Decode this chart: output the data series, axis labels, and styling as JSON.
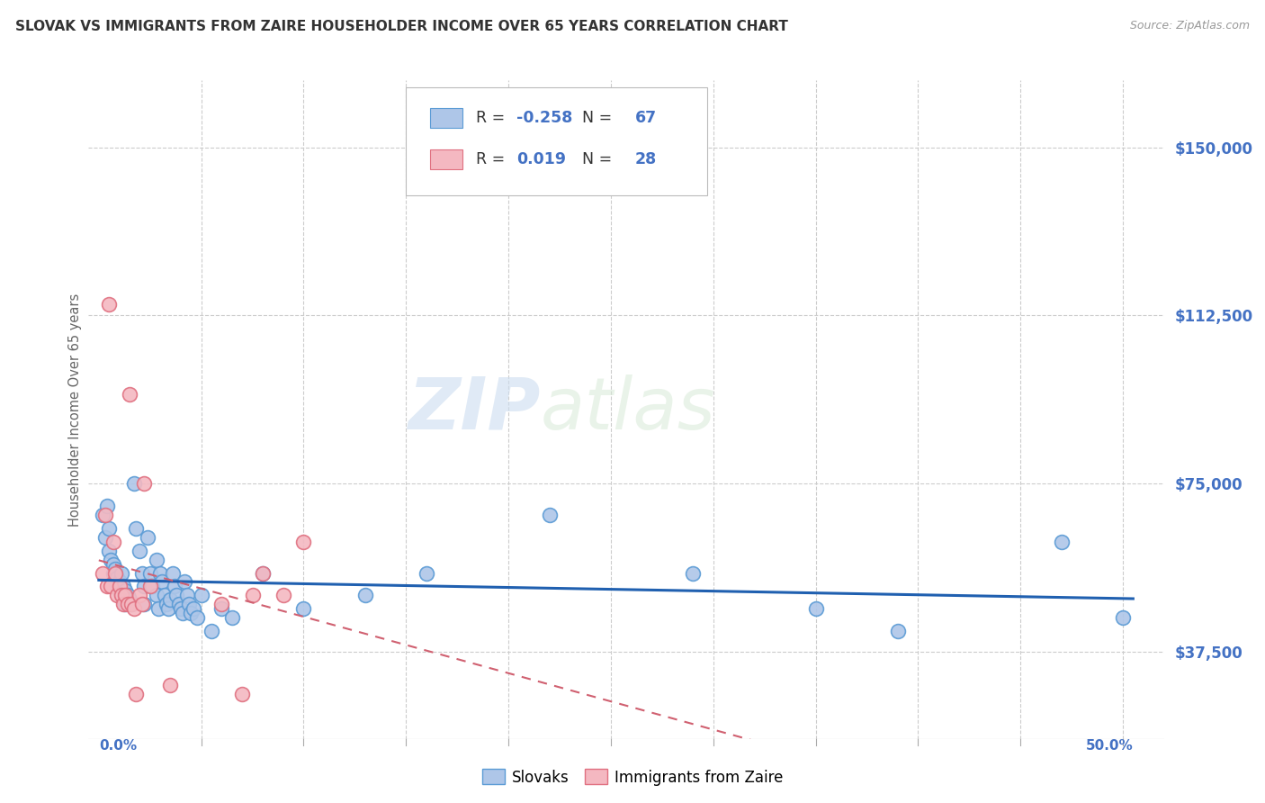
{
  "title": "SLOVAK VS IMMIGRANTS FROM ZAIRE HOUSEHOLDER INCOME OVER 65 YEARS CORRELATION CHART",
  "source": "Source: ZipAtlas.com",
  "ylabel": "Householder Income Over 65 years",
  "xlim": [
    -0.005,
    0.52
  ],
  "ylim": [
    18000,
    165000
  ],
  "watermark_zip": "ZIP",
  "watermark_atlas": "atlas",
  "ylabel_ticks": [
    "$37,500",
    "$75,000",
    "$112,500",
    "$150,000"
  ],
  "ylabel_vals": [
    37500,
    75000,
    112500,
    150000
  ],
  "legend_label_slovaks": "Slovaks",
  "legend_label_zaire": "Immigrants from Zaire",
  "r_slovak": -0.258,
  "r_zaire": 0.019,
  "n_slovak": 67,
  "n_zaire": 28,
  "slovak_color": "#aec6e8",
  "zaire_color": "#f4b8c1",
  "slovak_edge_color": "#5b9bd5",
  "zaire_edge_color": "#e07080",
  "slovak_line_color": "#2060b0",
  "zaire_line_color": "#d06070",
  "grid_color": "#cccccc",
  "title_color": "#333333",
  "axis_label_color": "#666666",
  "right_tick_color": "#4472c4",
  "blue_text_color": "#4472c4",
  "slovak_x": [
    0.002,
    0.003,
    0.004,
    0.005,
    0.005,
    0.006,
    0.007,
    0.007,
    0.008,
    0.008,
    0.009,
    0.009,
    0.01,
    0.01,
    0.011,
    0.011,
    0.012,
    0.012,
    0.013,
    0.013,
    0.014,
    0.015,
    0.016,
    0.017,
    0.018,
    0.02,
    0.021,
    0.022,
    0.022,
    0.024,
    0.025,
    0.026,
    0.028,
    0.028,
    0.029,
    0.03,
    0.031,
    0.032,
    0.033,
    0.034,
    0.035,
    0.036,
    0.037,
    0.038,
    0.039,
    0.04,
    0.041,
    0.042,
    0.043,
    0.044,
    0.045,
    0.046,
    0.048,
    0.05,
    0.055,
    0.06,
    0.065,
    0.08,
    0.1,
    0.13,
    0.16,
    0.22,
    0.29,
    0.35,
    0.39,
    0.47,
    0.5
  ],
  "slovak_y": [
    68000,
    63000,
    70000,
    60000,
    65000,
    58000,
    57000,
    55000,
    53000,
    56000,
    52000,
    54000,
    51000,
    53000,
    50000,
    55000,
    49000,
    52000,
    48000,
    51000,
    50000,
    49000,
    48000,
    75000,
    65000,
    60000,
    55000,
    52000,
    48000,
    63000,
    55000,
    52000,
    58000,
    50000,
    47000,
    55000,
    53000,
    50000,
    48000,
    47000,
    49000,
    55000,
    52000,
    50000,
    48000,
    47000,
    46000,
    53000,
    50000,
    48000,
    46000,
    47000,
    45000,
    50000,
    42000,
    47000,
    45000,
    55000,
    47000,
    50000,
    55000,
    68000,
    55000,
    47000,
    42000,
    62000,
    45000
  ],
  "zaire_x": [
    0.002,
    0.003,
    0.004,
    0.005,
    0.006,
    0.007,
    0.008,
    0.009,
    0.01,
    0.011,
    0.012,
    0.013,
    0.014,
    0.015,
    0.016,
    0.017,
    0.018,
    0.02,
    0.021,
    0.022,
    0.025,
    0.035,
    0.06,
    0.07,
    0.075,
    0.08,
    0.09,
    0.1
  ],
  "zaire_y": [
    55000,
    68000,
    52000,
    115000,
    52000,
    62000,
    55000,
    50000,
    52000,
    50000,
    48000,
    50000,
    48000,
    95000,
    48000,
    47000,
    28000,
    50000,
    48000,
    75000,
    52000,
    30000,
    48000,
    28000,
    50000,
    55000,
    50000,
    62000
  ]
}
